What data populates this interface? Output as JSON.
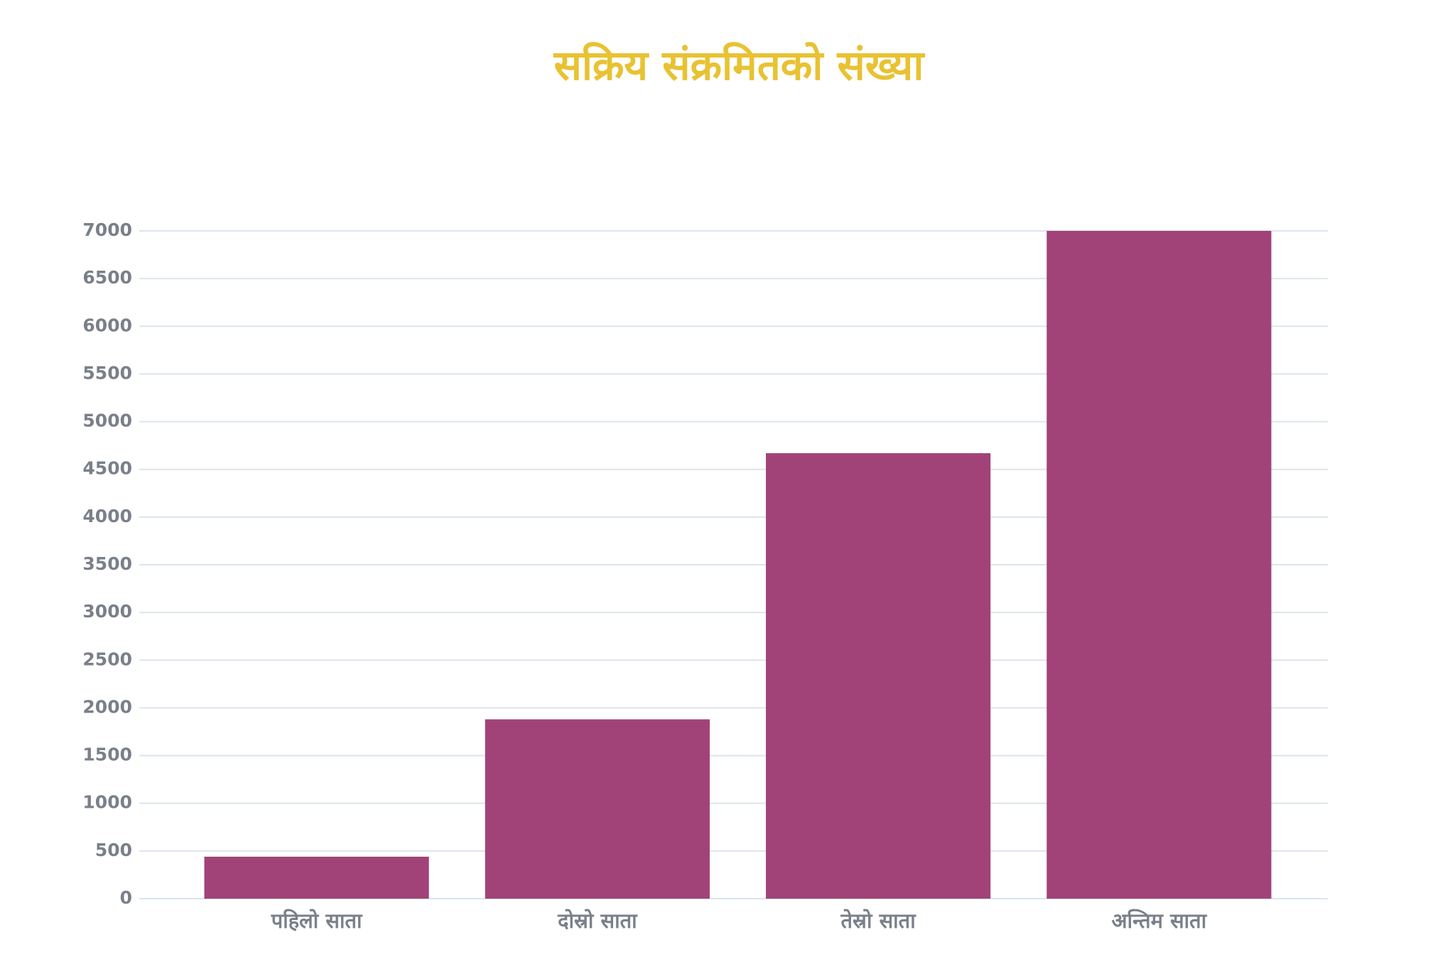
{
  "chart_data": {
    "type": "bar",
    "title": "सक्रिय संक्रमितको संख्या",
    "categories": [
      "पहिलो साता",
      "दोस्रो साता",
      "तेस्रो साता",
      "अन्तिम साता"
    ],
    "values": [
      440,
      1880,
      4670,
      7000
    ],
    "color": "#a14378",
    "ylim": [
      0,
      7000
    ],
    "yticks": [
      0,
      500,
      1000,
      1500,
      2000,
      2500,
      3000,
      3500,
      4000,
      4500,
      5000,
      5500,
      6000,
      6500,
      7000
    ],
    "grid": true
  }
}
